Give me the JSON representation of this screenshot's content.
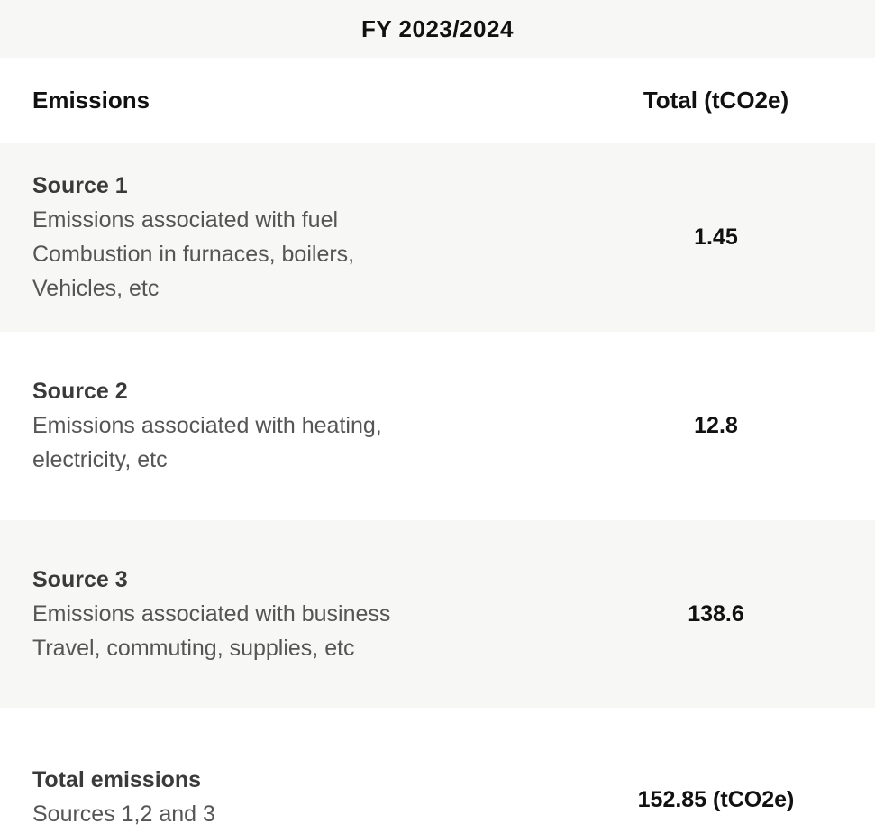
{
  "header": {
    "fiscal_year": "FY 2023/2024"
  },
  "columns": {
    "emissions": "Emissions",
    "total": "Total (tCO2e)"
  },
  "rows": [
    {
      "title": "Source 1",
      "description": "Emissions associated with fuel Combustion in furnaces, boilers, Vehicles, etc",
      "value": "1.45"
    },
    {
      "title": "Source 2",
      "description": "Emissions associated with heating, electricity, etc",
      "value": "12.8"
    },
    {
      "title": "Source 3",
      "description": "Emissions associated with business Travel, commuting, supplies, etc",
      "value": "138.6"
    }
  ],
  "total": {
    "title": "Total emissions",
    "description": "Sources 1,2 and 3",
    "value": "152.85 (tCO2e)"
  }
}
